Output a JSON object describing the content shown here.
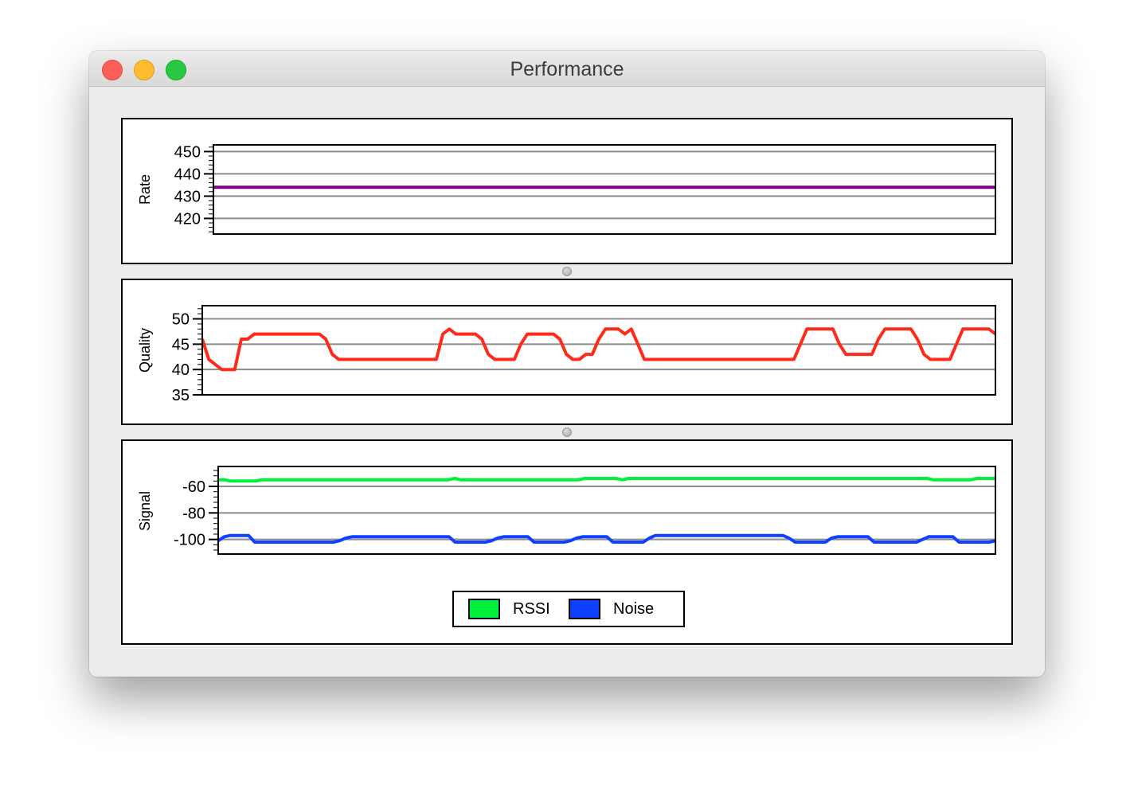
{
  "window": {
    "title": "Performance"
  },
  "colors": {
    "rate": "#800080",
    "quality": "#ff2a1a",
    "rssi": "#00f03c",
    "noise": "#1040ff",
    "grid": "#8c8c8c"
  },
  "chart_data": [
    {
      "type": "line",
      "name": "rate",
      "ylabel": "Rate",
      "ylim": [
        413,
        453
      ],
      "yticks": [
        420,
        430,
        440,
        450
      ],
      "series": [
        {
          "name": "Rate",
          "color": "#800080",
          "values": [
            434,
            434
          ]
        }
      ]
    },
    {
      "type": "line",
      "name": "quality",
      "ylabel": "Quality",
      "ylim": [
        35,
        52.6
      ],
      "yticks": [
        35,
        40,
        45,
        50
      ],
      "series": [
        {
          "name": "Quality",
          "color": "#ff2a1a",
          "values": [
            46,
            42,
            41,
            40,
            40,
            40,
            46,
            46,
            47,
            47,
            47,
            47,
            47,
            47,
            47,
            47,
            47,
            47,
            47,
            46,
            43,
            42,
            42,
            42,
            42,
            42,
            42,
            42,
            42,
            42,
            42,
            42,
            42,
            42,
            42,
            42,
            42,
            47,
            48,
            47,
            47,
            47,
            47,
            46,
            43,
            42,
            42,
            42,
            42,
            45,
            47,
            47,
            47,
            47,
            47,
            46,
            43,
            42,
            42,
            43,
            43,
            46,
            48,
            48,
            48,
            47,
            48,
            45,
            42,
            42,
            42,
            42,
            42,
            42,
            42,
            42,
            42,
            42,
            42,
            42,
            42,
            42,
            42,
            42,
            42,
            42,
            42,
            42,
            42,
            42,
            42,
            42,
            45,
            48,
            48,
            48,
            48,
            48,
            45,
            43,
            43,
            43,
            43,
            43,
            46,
            48,
            48,
            48,
            48,
            48,
            46,
            43,
            42,
            42,
            42,
            42,
            45,
            48,
            48,
            48,
            48,
            48,
            47
          ]
        }
      ]
    },
    {
      "type": "line",
      "name": "signal",
      "ylabel": "Signal",
      "ylim": [
        -111,
        -45
      ],
      "yticks": [
        -60,
        -80,
        -100
      ],
      "legend": "bottom-center",
      "series": [
        {
          "name": "RSSI",
          "color": "#00f03c",
          "values": [
            -55,
            -55,
            -56,
            -56,
            -56,
            -56,
            -56,
            -55,
            -55,
            -55,
            -55,
            -55,
            -55,
            -55,
            -55,
            -55,
            -55,
            -55,
            -55,
            -55,
            -55,
            -55,
            -55,
            -55,
            -55,
            -55,
            -55,
            -55,
            -55,
            -55,
            -55,
            -55,
            -55,
            -55,
            -55,
            -55,
            -55,
            -55,
            -54,
            -55,
            -55,
            -55,
            -55,
            -55,
            -55,
            -55,
            -55,
            -55,
            -55,
            -55,
            -55,
            -55,
            -55,
            -55,
            -55,
            -55,
            -55,
            -55,
            -55,
            -54,
            -54,
            -54,
            -54,
            -54,
            -54,
            -55,
            -54,
            -54,
            -54,
            -54,
            -54,
            -54,
            -54,
            -54,
            -54,
            -54,
            -54,
            -54,
            -54,
            -54,
            -54,
            -54,
            -54,
            -54,
            -54,
            -54,
            -54,
            -54,
            -54,
            -54,
            -54,
            -54,
            -54,
            -54,
            -54,
            -54,
            -54,
            -54,
            -54,
            -54,
            -54,
            -54,
            -54,
            -54,
            -54,
            -54,
            -54,
            -54,
            -54,
            -54,
            -54,
            -54,
            -54,
            -54,
            -54,
            -55,
            -55,
            -55,
            -55,
            -55,
            -55,
            -55,
            -54,
            -54,
            -54,
            -54
          ]
        },
        {
          "name": "Noise",
          "color": "#1040ff",
          "values": [
            -101,
            -98,
            -97,
            -97,
            -97,
            -97,
            -102,
            -102,
            -102,
            -102,
            -102,
            -102,
            -102,
            -102,
            -102,
            -102,
            -102,
            -102,
            -102,
            -102,
            -101,
            -99,
            -98,
            -98,
            -98,
            -98,
            -98,
            -98,
            -98,
            -98,
            -98,
            -98,
            -98,
            -98,
            -98,
            -98,
            -98,
            -98,
            -98,
            -102,
            -102,
            -102,
            -102,
            -102,
            -102,
            -101,
            -99,
            -98,
            -98,
            -98,
            -98,
            -98,
            -102,
            -102,
            -102,
            -102,
            -102,
            -102,
            -101,
            -99,
            -98,
            -98,
            -98,
            -98,
            -98,
            -102,
            -102,
            -102,
            -102,
            -102,
            -102,
            -99,
            -97,
            -97,
            -97,
            -97,
            -97,
            -97,
            -97,
            -97,
            -97,
            -97,
            -97,
            -97,
            -97,
            -97,
            -97,
            -97,
            -97,
            -97,
            -97,
            -97,
            -97,
            -97,
            -99,
            -102,
            -102,
            -102,
            -102,
            -102,
            -102,
            -99,
            -98,
            -98,
            -98,
            -98,
            -98,
            -98,
            -102,
            -102,
            -102,
            -102,
            -102,
            -102,
            -102,
            -102,
            -100,
            -98,
            -98,
            -98,
            -98,
            -98,
            -102,
            -102,
            -102,
            -102,
            -102,
            -102,
            -101
          ]
        }
      ]
    }
  ]
}
